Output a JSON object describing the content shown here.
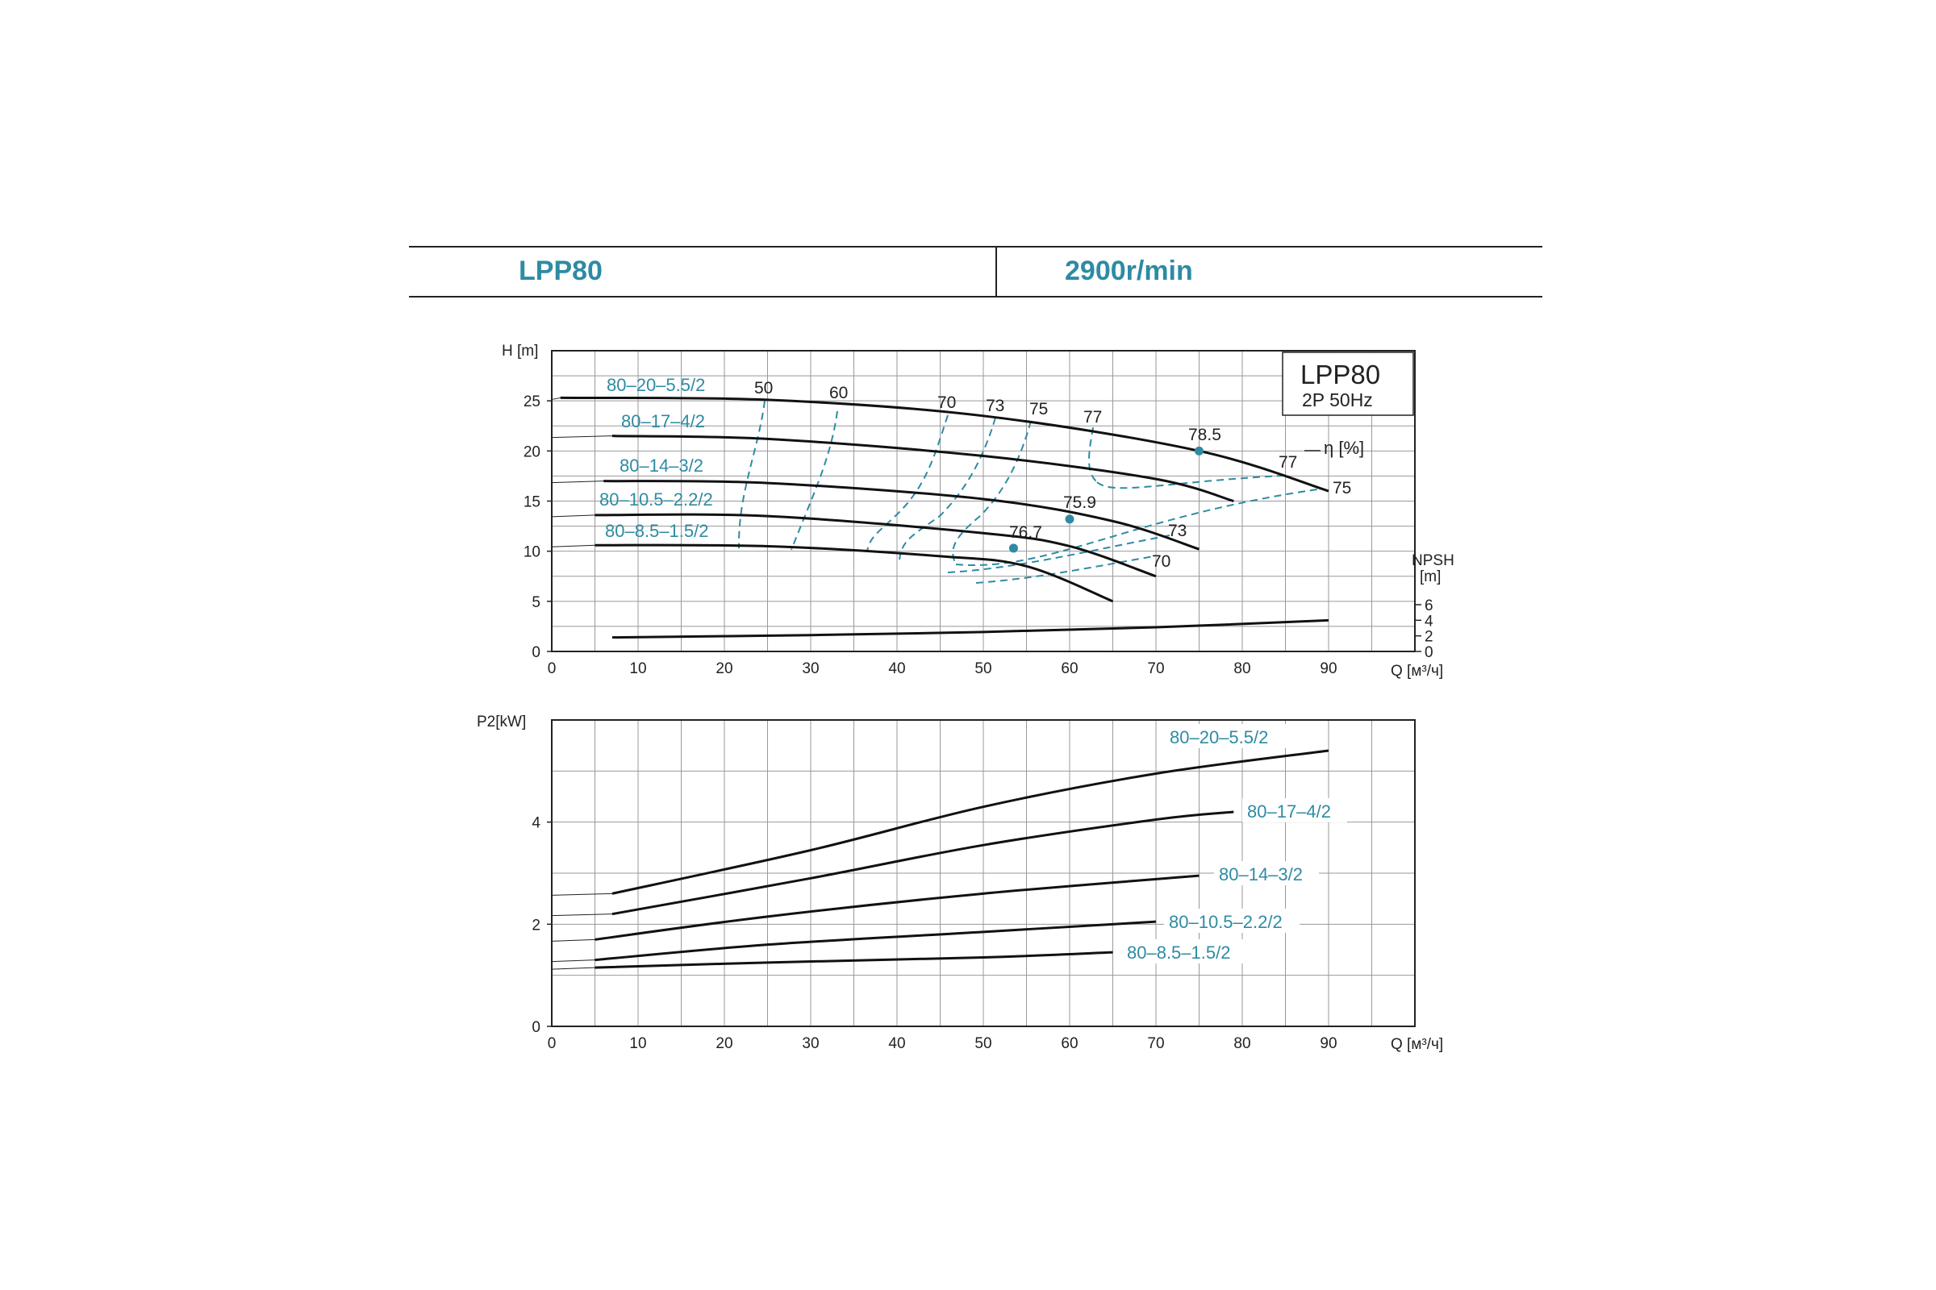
{
  "header": {
    "model": "LPP80",
    "speed": "2900r/min"
  },
  "chart_data": [
    {
      "id": "head",
      "type": "line",
      "ylabel": "H [m]",
      "xlabel": "Q [м³/ч]",
      "xlim": [
        0,
        100
      ],
      "ylim": [
        0,
        30
      ],
      "xticks": [
        0,
        10,
        20,
        30,
        40,
        50,
        60,
        70,
        80,
        90
      ],
      "yticks": [
        0,
        5,
        10,
        15,
        20,
        25
      ],
      "legend": {
        "title": "LPP80",
        "subtitle": "2P  50Hz"
      },
      "eta_label": "η [%]",
      "npsh_label": [
        "NPSH",
        "[m]"
      ],
      "npsh_ticks": [
        0,
        2,
        4,
        6
      ],
      "series": [
        {
          "name": "80–20–5.5/2",
          "x": [
            1,
            25,
            50,
            75,
            90
          ],
          "y": [
            25.3,
            25.1,
            23.5,
            20.0,
            16.0
          ]
        },
        {
          "name": "80–17–4/2",
          "x": [
            7,
            25,
            50,
            70,
            79
          ],
          "y": [
            21.5,
            21.2,
            19.5,
            17.2,
            15.0
          ]
        },
        {
          "name": "80–14–3/2",
          "x": [
            6,
            25,
            50,
            65,
            75
          ],
          "y": [
            17.0,
            16.8,
            15.2,
            13.0,
            10.2
          ]
        },
        {
          "name": "80–10.5–2.2/2",
          "x": [
            5,
            25,
            50,
            60,
            70
          ],
          "y": [
            13.6,
            13.5,
            11.8,
            10.5,
            7.5
          ]
        },
        {
          "name": "80–8.5–1.5/2",
          "x": [
            5,
            25,
            45,
            55,
            65
          ],
          "y": [
            10.6,
            10.5,
            9.5,
            8.5,
            5.0
          ]
        }
      ],
      "npsh": {
        "x": [
          7,
          30,
          50,
          70,
          90
        ],
        "y": [
          1.8,
          2.1,
          2.5,
          3.1,
          4.0
        ]
      },
      "efficiency_labels": [
        "50",
        "60",
        "70",
        "73",
        "75",
        "77",
        "77",
        "75",
        "73",
        "70"
      ],
      "bep": [
        {
          "label": "78.5",
          "x": 75,
          "y": 20.0
        },
        {
          "label": "75.9",
          "x": 60,
          "y": 13.2
        },
        {
          "label": "76.7",
          "x": 53.5,
          "y": 10.3
        }
      ]
    },
    {
      "id": "power",
      "type": "line",
      "ylabel": "P2[kW]",
      "xlabel": "Q [м³/ч]",
      "xlim": [
        0,
        100
      ],
      "ylim": [
        0,
        6
      ],
      "xticks": [
        0,
        10,
        20,
        30,
        40,
        50,
        60,
        70,
        80,
        90
      ],
      "yticks": [
        0,
        2,
        4
      ],
      "series": [
        {
          "name": "80–20–5.5/2",
          "x": [
            7,
            30,
            50,
            70,
            90
          ],
          "y": [
            2.6,
            3.45,
            4.3,
            4.95,
            5.4
          ]
        },
        {
          "name": "80–17–4/2",
          "x": [
            7,
            30,
            50,
            70,
            79
          ],
          "y": [
            2.2,
            2.9,
            3.55,
            4.05,
            4.2
          ]
        },
        {
          "name": "80–14–3/2",
          "x": [
            5,
            25,
            50,
            75
          ],
          "y": [
            1.7,
            2.15,
            2.6,
            2.95
          ]
        },
        {
          "name": "80–10.5–2.2/2",
          "x": [
            5,
            25,
            50,
            70
          ],
          "y": [
            1.3,
            1.6,
            1.85,
            2.05
          ]
        },
        {
          "name": "80–8.5–1.5/2",
          "x": [
            5,
            25,
            50,
            65
          ],
          "y": [
            1.15,
            1.25,
            1.35,
            1.45
          ]
        }
      ]
    }
  ]
}
